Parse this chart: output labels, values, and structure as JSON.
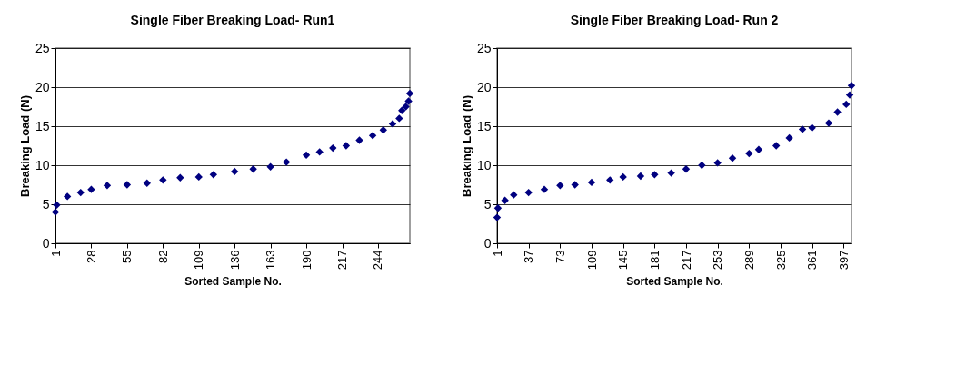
{
  "chart_data": [
    {
      "type": "scatter",
      "title": "Single Fiber Breaking Load- Run1",
      "xlabel": "Sorted Sample No.",
      "ylabel": "Breaking Load (N)",
      "marker": "diamond",
      "grid": "y",
      "xlim": [
        1,
        268
      ],
      "xticks": [
        1,
        28,
        55,
        82,
        109,
        136,
        163,
        190,
        217,
        244
      ],
      "ylim": [
        0,
        25
      ],
      "yticks": [
        0,
        5,
        10,
        15,
        20,
        25
      ],
      "series": [
        {
          "color": "#000080",
          "x": [
            1,
            2,
            10,
            20,
            28,
            40,
            55,
            70,
            82,
            95,
            109,
            120,
            136,
            150,
            163,
            175,
            190,
            200,
            210,
            220,
            230,
            240,
            248,
            255,
            260,
            262,
            265,
            267,
            268
          ],
          "values": [
            4.0,
            4.9,
            6.0,
            6.5,
            6.9,
            7.4,
            7.5,
            7.7,
            8.1,
            8.4,
            8.5,
            8.8,
            9.2,
            9.5,
            9.8,
            10.4,
            11.3,
            11.7,
            12.2,
            12.5,
            13.2,
            13.8,
            14.5,
            15.3,
            16.0,
            17.0,
            17.5,
            18.2,
            19.2
          ]
        }
      ]
    },
    {
      "type": "scatter",
      "title": "Single Fiber Breaking Load- Run 2",
      "xlabel": "Sorted Sample No.",
      "ylabel": "Breaking Load (N)",
      "marker": "diamond",
      "grid": "y",
      "xlim": [
        1,
        406
      ],
      "xticks": [
        1,
        37,
        73,
        109,
        145,
        181,
        217,
        253,
        289,
        325,
        361,
        397
      ],
      "ylim": [
        0,
        25
      ],
      "yticks": [
        0,
        5,
        10,
        15,
        20,
        25
      ],
      "series": [
        {
          "color": "#000080",
          "x": [
            1,
            2,
            10,
            20,
            37,
            55,
            73,
            90,
            109,
            130,
            145,
            165,
            181,
            200,
            217,
            235,
            253,
            270,
            289,
            300,
            320,
            335,
            350,
            361,
            380,
            390,
            400,
            404,
            406
          ],
          "values": [
            3.3,
            4.5,
            5.5,
            6.2,
            6.5,
            6.9,
            7.4,
            7.5,
            7.8,
            8.1,
            8.5,
            8.6,
            8.8,
            9.0,
            9.5,
            10.0,
            10.3,
            10.9,
            11.5,
            12.0,
            12.5,
            13.5,
            14.6,
            14.8,
            15.4,
            16.8,
            17.8,
            19.0,
            20.2
          ]
        }
      ]
    }
  ]
}
